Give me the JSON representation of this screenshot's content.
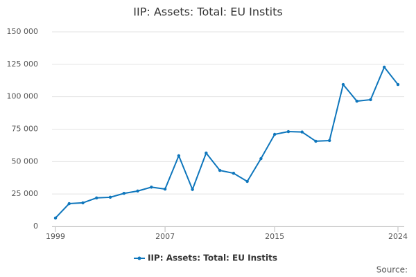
{
  "chart_data": {
    "type": "line",
    "title": "IIP: Assets: Total: EU Instits",
    "x": [
      1999,
      2000,
      2001,
      2002,
      2003,
      2004,
      2005,
      2006,
      2007,
      2008,
      2009,
      2010,
      2011,
      2012,
      2013,
      2014,
      2015,
      2016,
      2017,
      2018,
      2019,
      2020,
      2021,
      2022,
      2023,
      2024
    ],
    "series": [
      {
        "name": "IIP: Assets: Total: EU Instits",
        "color": "#0e76bc",
        "values": [
          6500,
          17600,
          18200,
          22000,
          22500,
          25500,
          27300,
          30300,
          28800,
          54500,
          28500,
          56600,
          43200,
          41000,
          34700,
          52300,
          71000,
          73100,
          72800,
          65700,
          66200,
          109400,
          96600,
          97700,
          122800,
          109400
        ]
      }
    ],
    "xlim": [
      1999,
      2024
    ],
    "xticks": [
      1999,
      2007,
      2015,
      2024
    ],
    "ylim": [
      0,
      150000
    ],
    "yticks": [
      0,
      {
        "value": 25000,
        "label": "25 000"
      },
      {
        "value": 50000,
        "label": "50 000"
      },
      {
        "value": 75000,
        "label": "75 000"
      },
      {
        "value": 100000,
        "label": "100 000"
      },
      {
        "value": 125000,
        "label": "125 000"
      },
      {
        "value": 150000,
        "label": "150 000"
      }
    ],
    "grid": true,
    "legend": "bottom",
    "source": "Source:"
  }
}
